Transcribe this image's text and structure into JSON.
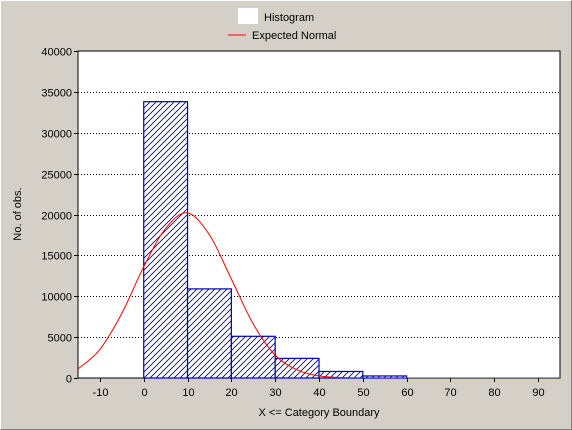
{
  "chart_data": {
    "type": "bar",
    "xlabel": "X <= Category Boundary",
    "ylabel": "No. of obs.",
    "xlim": [
      -15,
      95
    ],
    "ylim": [
      0,
      40000
    ],
    "x_ticks": [
      -10,
      0,
      10,
      20,
      30,
      40,
      50,
      60,
      70,
      80,
      90
    ],
    "y_ticks": [
      0,
      5000,
      10000,
      15000,
      20000,
      25000,
      30000,
      35000,
      40000
    ],
    "grid": "horizontal dotted",
    "legend_position": "top-center",
    "series": [
      {
        "name": "Histogram",
        "kind": "histogram",
        "color": "#0000c0",
        "bins": [
          {
            "from": 0,
            "to": 10,
            "value": 33800
          },
          {
            "from": 10,
            "to": 20,
            "value": 10900
          },
          {
            "from": 20,
            "to": 30,
            "value": 5100
          },
          {
            "from": 30,
            "to": 40,
            "value": 2400
          },
          {
            "from": 40,
            "to": 50,
            "value": 800
          },
          {
            "from": 50,
            "to": 60,
            "value": 250
          }
        ]
      },
      {
        "name": "Expected Normal",
        "kind": "line",
        "color": "#ff0000",
        "x": [
          -15,
          -10,
          -5,
          0,
          5,
          10,
          15,
          20,
          25,
          30,
          35,
          40,
          45,
          50,
          55,
          60,
          70,
          80,
          95
        ],
        "y": [
          1100,
          3500,
          7900,
          13600,
          18300,
          20200,
          17500,
          12100,
          6600,
          2800,
          1000,
          260,
          60,
          10,
          0,
          0,
          0,
          0,
          0
        ]
      }
    ]
  }
}
